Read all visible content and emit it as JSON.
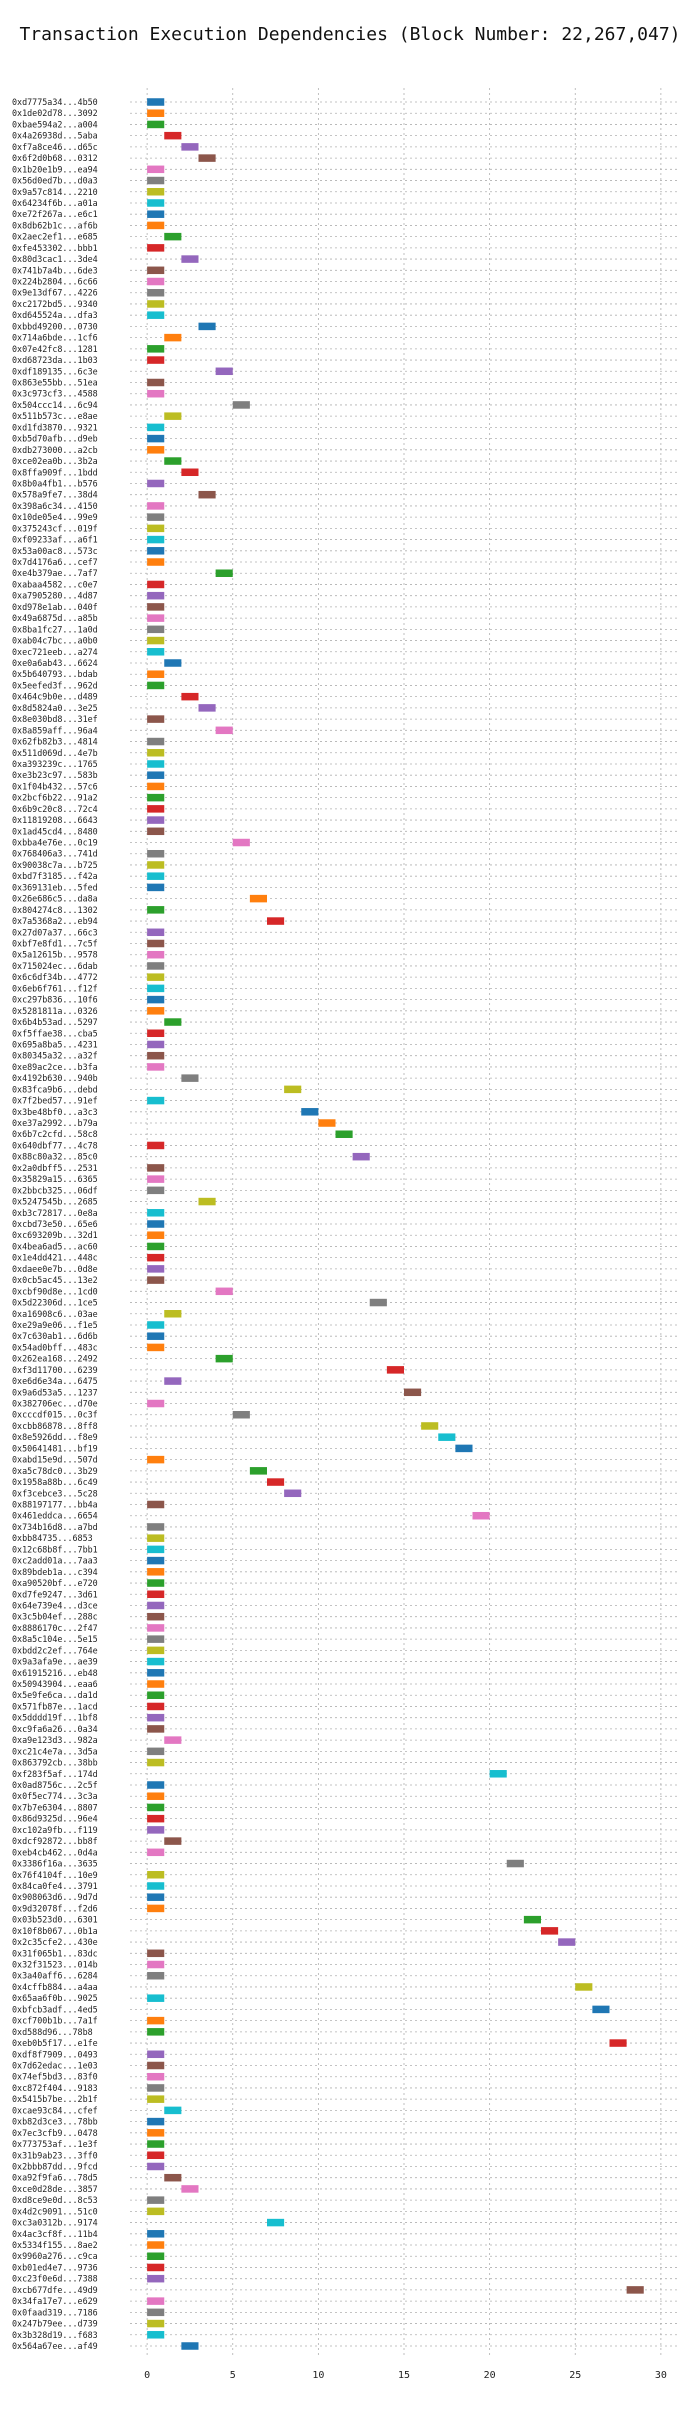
{
  "chart_data": {
    "type": "bar",
    "orientation": "horizontal",
    "title": "Transaction Execution Dependencies (Block Number: 22,267,047)",
    "xlabel": "",
    "ylabel": "",
    "xlim": [
      -1,
      31
    ],
    "xticks": [
      0,
      5,
      10,
      15,
      20,
      25,
      30
    ],
    "grid": true,
    "palette": [
      "#1f77b4",
      "#ff7f0e",
      "#2ca02c",
      "#d62728",
      "#9467bd",
      "#8c564b",
      "#e377c2",
      "#7f7f7f",
      "#bcbd22",
      "#17becf"
    ],
    "transactions": [
      {
        "label": "0xd7775a34...4b50",
        "start": 0
      },
      {
        "label": "0x1de02d78...3092",
        "start": 0
      },
      {
        "label": "0xbae594a2...a004",
        "start": 0
      },
      {
        "label": "0x4a26938d...5aba",
        "start": 1
      },
      {
        "label": "0xf7a8ce46...d65c",
        "start": 2
      },
      {
        "label": "0x6f2d0b68...0312",
        "start": 3
      },
      {
        "label": "0x1b20e1b9...ea94",
        "start": 0
      },
      {
        "label": "0x56d0ed7b...d0a3",
        "start": 0
      },
      {
        "label": "0x9a57c814...2210",
        "start": 0
      },
      {
        "label": "0x64234f6b...a01a",
        "start": 0
      },
      {
        "label": "0xe72f267a...e6c1",
        "start": 0
      },
      {
        "label": "0x8db62b1c...af6b",
        "start": 0
      },
      {
        "label": "0x2aec2ef1...e685",
        "start": 1
      },
      {
        "label": "0xfe453302...bbb1",
        "start": 0
      },
      {
        "label": "0x80d3cac1...3de4",
        "start": 2
      },
      {
        "label": "0x741b7a4b...6de3",
        "start": 0
      },
      {
        "label": "0x224b2804...6c66",
        "start": 0
      },
      {
        "label": "0x9e13df67...4226",
        "start": 0
      },
      {
        "label": "0xc2172bd5...9340",
        "start": 0
      },
      {
        "label": "0xd645524a...dfa3",
        "start": 0
      },
      {
        "label": "0xbbd49200...0730",
        "start": 3
      },
      {
        "label": "0x714a6bde...1cf6",
        "start": 1
      },
      {
        "label": "0x07e42fc8...1281",
        "start": 0
      },
      {
        "label": "0xd68723da...1b03",
        "start": 0
      },
      {
        "label": "0xdf189135...6c3e",
        "start": 4
      },
      {
        "label": "0x863e55bb...51ea",
        "start": 0
      },
      {
        "label": "0x3c973cf3...4588",
        "start": 0
      },
      {
        "label": "0x504ccc14...6c94",
        "start": 5
      },
      {
        "label": "0x511b573c...e8ae",
        "start": 1
      },
      {
        "label": "0xd1fd3870...9321",
        "start": 0
      },
      {
        "label": "0xb5d70afb...d9eb",
        "start": 0
      },
      {
        "label": "0xdb273000...a2cb",
        "start": 0
      },
      {
        "label": "0xce02ea0b...3b2a",
        "start": 1
      },
      {
        "label": "0x8ffa909f...1bdd",
        "start": 2
      },
      {
        "label": "0x8b0a4fb1...b576",
        "start": 0
      },
      {
        "label": "0x578a9fe7...38d4",
        "start": 3
      },
      {
        "label": "0x398a6c34...4150",
        "start": 0
      },
      {
        "label": "0x10de05e4...99e9",
        "start": 0
      },
      {
        "label": "0x375243cf...019f",
        "start": 0
      },
      {
        "label": "0xf09233af...a6f1",
        "start": 0
      },
      {
        "label": "0x53a00ac8...573c",
        "start": 0
      },
      {
        "label": "0x7d4176a6...cef7",
        "start": 0
      },
      {
        "label": "0xe4b379ae...7af7",
        "start": 4
      },
      {
        "label": "0xabaa4582...c0e7",
        "start": 0
      },
      {
        "label": "0xa7905280...4d87",
        "start": 0
      },
      {
        "label": "0xd978e1ab...040f",
        "start": 0
      },
      {
        "label": "0x49a6875d...a85b",
        "start": 0
      },
      {
        "label": "0x8ba1fc27...1a0d",
        "start": 0
      },
      {
        "label": "0xab04c7bc...a0b0",
        "start": 0
      },
      {
        "label": "0xec721eeb...a274",
        "start": 0
      },
      {
        "label": "0xe0a6ab43...6624",
        "start": 1
      },
      {
        "label": "0x5b640793...bdab",
        "start": 0
      },
      {
        "label": "0x5eefed3f...962d",
        "start": 0
      },
      {
        "label": "0x464c9b0e...d489",
        "start": 2
      },
      {
        "label": "0x8d5824a0...3e25",
        "start": 3
      },
      {
        "label": "0x8e030bd8...31ef",
        "start": 0
      },
      {
        "label": "0x8a859aff...96a4",
        "start": 4
      },
      {
        "label": "0x62fb82b3...4814",
        "start": 0
      },
      {
        "label": "0x511d069d...4e7b",
        "start": 0
      },
      {
        "label": "0xa393239c...1765",
        "start": 0
      },
      {
        "label": "0xe3b23c97...583b",
        "start": 0
      },
      {
        "label": "0x1f04b432...57c6",
        "start": 0
      },
      {
        "label": "0x2bcf6b22...91a2",
        "start": 0
      },
      {
        "label": "0x6b9c20c8...72c4",
        "start": 0
      },
      {
        "label": "0x11819208...6643",
        "start": 0
      },
      {
        "label": "0x1ad45cd4...8480",
        "start": 0
      },
      {
        "label": "0xbba4e76e...0c19",
        "start": 5
      },
      {
        "label": "0x768406a3...741d",
        "start": 0
      },
      {
        "label": "0x90038c7a...b725",
        "start": 0
      },
      {
        "label": "0xbd7f3185...f42a",
        "start": 0
      },
      {
        "label": "0x369131eb...5fed",
        "start": 0
      },
      {
        "label": "0x26e686c5...da8a",
        "start": 6
      },
      {
        "label": "0x804274c8...1302",
        "start": 0
      },
      {
        "label": "0x7a5368a2...eb94",
        "start": 7
      },
      {
        "label": "0x27d07a37...66c3",
        "start": 0
      },
      {
        "label": "0xbf7e8fd1...7c5f",
        "start": 0
      },
      {
        "label": "0x5a12615b...9578",
        "start": 0
      },
      {
        "label": "0x715024ec...6dab",
        "start": 0
      },
      {
        "label": "0x6c6df34b...4772",
        "start": 0
      },
      {
        "label": "0x6eb6f761...f12f",
        "start": 0
      },
      {
        "label": "0xc297b836...10f6",
        "start": 0
      },
      {
        "label": "0x5281811a...0326",
        "start": 0
      },
      {
        "label": "0x6b4b53ad...5297",
        "start": 1
      },
      {
        "label": "0xf5ffae38...cba5",
        "start": 0
      },
      {
        "label": "0x695a8ba5...4231",
        "start": 0
      },
      {
        "label": "0x80345a32...a32f",
        "start": 0
      },
      {
        "label": "0xe89ac2ce...b3fa",
        "start": 0
      },
      {
        "label": "0x4192b630...940b",
        "start": 2
      },
      {
        "label": "0x83fca9b6...debd",
        "start": 8
      },
      {
        "label": "0x7f2bed57...91ef",
        "start": 0
      },
      {
        "label": "0x3be48bf0...a3c3",
        "start": 9
      },
      {
        "label": "0xe37a2992...b79a",
        "start": 10
      },
      {
        "label": "0x6b7c2cfd...58c8",
        "start": 11
      },
      {
        "label": "0x640dbf77...4c78",
        "start": 0
      },
      {
        "label": "0x88c80a32...85c0",
        "start": 12
      },
      {
        "label": "0x2a0dbff5...2531",
        "start": 0
      },
      {
        "label": "0x35829a15...6365",
        "start": 0
      },
      {
        "label": "0x2bbcb325...06df",
        "start": 0
      },
      {
        "label": "0x5247545b...2685",
        "start": 3
      },
      {
        "label": "0xb3c72817...0e8a",
        "start": 0
      },
      {
        "label": "0xcbd73e50...65e6",
        "start": 0
      },
      {
        "label": "0xc693209b...32d1",
        "start": 0
      },
      {
        "label": "0x4bea6ad5...ac60",
        "start": 0
      },
      {
        "label": "0x1e4dd421...448c",
        "start": 0
      },
      {
        "label": "0xdaee0e7b...0d8e",
        "start": 0
      },
      {
        "label": "0x0cb5ac45...13e2",
        "start": 0
      },
      {
        "label": "0xcbf90d8e...1cd0",
        "start": 4
      },
      {
        "label": "0x5d22306d...1ce5",
        "start": 13
      },
      {
        "label": "0xa16908c6...03ae",
        "start": 1
      },
      {
        "label": "0xe29a9e06...f1e5",
        "start": 0
      },
      {
        "label": "0x7c630ab1...6d6b",
        "start": 0
      },
      {
        "label": "0x54ad0bff...483c",
        "start": 0
      },
      {
        "label": "0x262ea168...2492",
        "start": 4
      },
      {
        "label": "0xf3d11700...6239",
        "start": 14
      },
      {
        "label": "0xe6d6e34a...6475",
        "start": 1
      },
      {
        "label": "0x9a6d53a5...1237",
        "start": 15
      },
      {
        "label": "0x382706ec...d70e",
        "start": 0
      },
      {
        "label": "0xcccdf015...0c3f",
        "start": 5
      },
      {
        "label": "0xcbb86878...8ff8",
        "start": 16
      },
      {
        "label": "0x8e5926dd...f8e9",
        "start": 17
      },
      {
        "label": "0x50641481...bf19",
        "start": 18
      },
      {
        "label": "0xabd15e9d...507d",
        "start": 0
      },
      {
        "label": "0xa5c78dc0...3b29",
        "start": 6
      },
      {
        "label": "0x1958a88b...6c49",
        "start": 7
      },
      {
        "label": "0xf3cebce3...5c28",
        "start": 8
      },
      {
        "label": "0x88197177...bb4a",
        "start": 0
      },
      {
        "label": "0x461eddca...6654",
        "start": 19
      },
      {
        "label": "0x734b16d8...a7bd",
        "start": 0
      },
      {
        "label": "0xbb84735...6853",
        "start": 0
      },
      {
        "label": "0x12c68b8f...7bb1",
        "start": 0
      },
      {
        "label": "0xc2add01a...7aa3",
        "start": 0
      },
      {
        "label": "0x89bdeb1a...c394",
        "start": 0
      },
      {
        "label": "0xa90520bf...e720",
        "start": 0
      },
      {
        "label": "0xd7fe9247...3d61",
        "start": 0
      },
      {
        "label": "0x64e739e4...d3ce",
        "start": 0
      },
      {
        "label": "0x3c5b04ef...288c",
        "start": 0
      },
      {
        "label": "0x8886170c...2f47",
        "start": 0
      },
      {
        "label": "0x8a5c104e...5e15",
        "start": 0
      },
      {
        "label": "0xbdd2c2ef...764e",
        "start": 0
      },
      {
        "label": "0x9a3afa9e...ae39",
        "start": 0
      },
      {
        "label": "0x61915216...eb48",
        "start": 0
      },
      {
        "label": "0x50943904...eaa6",
        "start": 0
      },
      {
        "label": "0x5e9fe6ca...da1d",
        "start": 0
      },
      {
        "label": "0x571fb87e...1acd",
        "start": 0
      },
      {
        "label": "0x5dddd19f...1bf8",
        "start": 0
      },
      {
        "label": "0xc9fa6a26...0a34",
        "start": 0
      },
      {
        "label": "0xa9e123d3...982a",
        "start": 1
      },
      {
        "label": "0xc21c4e7a...3d5a",
        "start": 0
      },
      {
        "label": "0x863792cb...38bb",
        "start": 0
      },
      {
        "label": "0xf283f5af...174d",
        "start": 20
      },
      {
        "label": "0x0ad8756c...2c5f",
        "start": 0
      },
      {
        "label": "0x0f5ec774...3c3a",
        "start": 0
      },
      {
        "label": "0x7b7e6304...8807",
        "start": 0
      },
      {
        "label": "0x86d9325d...96e4",
        "start": 0
      },
      {
        "label": "0xc102a9fb...f119",
        "start": 0
      },
      {
        "label": "0xdcf92872...bb8f",
        "start": 1
      },
      {
        "label": "0xeb4cb462...0d4a",
        "start": 0
      },
      {
        "label": "0x3386f16a...3635",
        "start": 21
      },
      {
        "label": "0x76f4104f...10e9",
        "start": 0
      },
      {
        "label": "0x84ca0fe4...3791",
        "start": 0
      },
      {
        "label": "0x908063d6...9d7d",
        "start": 0
      },
      {
        "label": "0x9d32078f...f2d6",
        "start": 0
      },
      {
        "label": "0x03b523d0...6301",
        "start": 22
      },
      {
        "label": "0x10f8b067...0b1a",
        "start": 23
      },
      {
        "label": "0x2c35cfe2...430e",
        "start": 24
      },
      {
        "label": "0x31f065b1...83dc",
        "start": 0
      },
      {
        "label": "0x32f31523...014b",
        "start": 0
      },
      {
        "label": "0x3a40aff6...6284",
        "start": 0
      },
      {
        "label": "0x4cffb884...a4aa",
        "start": 25
      },
      {
        "label": "0x65aa6f0b...9025",
        "start": 0
      },
      {
        "label": "0xbfcb3adf...4ed5",
        "start": 26
      },
      {
        "label": "0xcf700b1b...7a1f",
        "start": 0
      },
      {
        "label": "0xd588d96...78b8",
        "start": 0
      },
      {
        "label": "0xeb0b5f17...e1fe",
        "start": 27
      },
      {
        "label": "0xdf8f7909...0493",
        "start": 0
      },
      {
        "label": "0x7d62edac...1e03",
        "start": 0
      },
      {
        "label": "0x74ef5bd3...83f0",
        "start": 0
      },
      {
        "label": "0xc872f404...9183",
        "start": 0
      },
      {
        "label": "0x5415b7be...2b1f",
        "start": 0
      },
      {
        "label": "0xcae93c84...cfef",
        "start": 1
      },
      {
        "label": "0xb82d3ce3...78bb",
        "start": 0
      },
      {
        "label": "0x7ec3cfb9...0478",
        "start": 0
      },
      {
        "label": "0x773753af...1e3f",
        "start": 0
      },
      {
        "label": "0x31b9ab23...3ff0",
        "start": 0
      },
      {
        "label": "0x2bbb87dd...9fcd",
        "start": 0
      },
      {
        "label": "0xa92f9fa6...78d5",
        "start": 1
      },
      {
        "label": "0xce0d28de...3857",
        "start": 2
      },
      {
        "label": "0xd8ce9e0d...8c53",
        "start": 0
      },
      {
        "label": "0x4d2c9091...51c0",
        "start": 0
      },
      {
        "label": "0xc3a0312b...9174",
        "start": 7
      },
      {
        "label": "0x4ac3cf8f...11b4",
        "start": 0
      },
      {
        "label": "0x5334f155...8ae2",
        "start": 0
      },
      {
        "label": "0x9960a276...c9ca",
        "start": 0
      },
      {
        "label": "0xb01ed4e7...9736",
        "start": 0
      },
      {
        "label": "0xc23f0e6d...7388",
        "start": 0
      },
      {
        "label": "0xcb677dfe...49d9",
        "start": 28
      },
      {
        "label": "0x34fa17e7...e629",
        "start": 0
      },
      {
        "label": "0x0faad319...7186",
        "start": 0
      },
      {
        "label": "0x247b79ee...d739",
        "start": 0
      },
      {
        "label": "0x3b328d19...f683",
        "start": 0
      },
      {
        "label": "0x564a67ee...af49",
        "start": 2
      }
    ]
  }
}
